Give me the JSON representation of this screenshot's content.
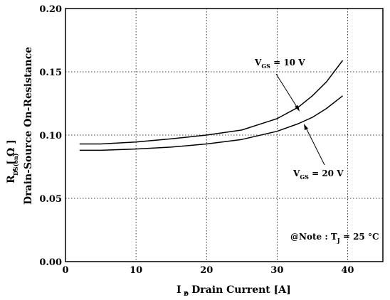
{
  "chart_data": {
    "type": "line",
    "title": "",
    "xlabel": "I  , Drain Current  [A]",
    "xlabel_sub": "D",
    "ylabel_line1": "R          , [ Ω ]",
    "ylabel_line1_sub": "DS(on)",
    "ylabel_line2": "Drain-Source On-Resistance",
    "xlim": [
      0,
      45
    ],
    "ylim": [
      0.0,
      0.2
    ],
    "x_ticks": [
      "0",
      "10",
      "20",
      "30",
      "40"
    ],
    "y_ticks": [
      "0.00",
      "0.05",
      "0.10",
      "0.15",
      "0.20"
    ],
    "grid": true,
    "series": [
      {
        "annotation": {
          "main": "V",
          "sub": "GS",
          "value": " = 10 V"
        },
        "x": [
          2,
          5,
          10,
          15,
          20,
          25,
          30,
          33,
          35,
          37,
          39.3
        ],
        "y": [
          0.093,
          0.093,
          0.0945,
          0.097,
          0.1,
          0.104,
          0.113,
          0.122,
          0.131,
          0.142,
          0.159
        ]
      },
      {
        "annotation": {
          "main": "V",
          "sub": "GS",
          "value": " = 20 V"
        },
        "x": [
          2,
          5,
          10,
          15,
          20,
          25,
          30,
          33,
          35,
          37,
          39.3
        ],
        "y": [
          0.088,
          0.088,
          0.089,
          0.0905,
          0.093,
          0.0965,
          0.103,
          0.109,
          0.114,
          0.121,
          0.131
        ]
      }
    ],
    "note": {
      "prefix": "@Note : T",
      "sub": "J",
      "value": " = 25 °C"
    }
  }
}
